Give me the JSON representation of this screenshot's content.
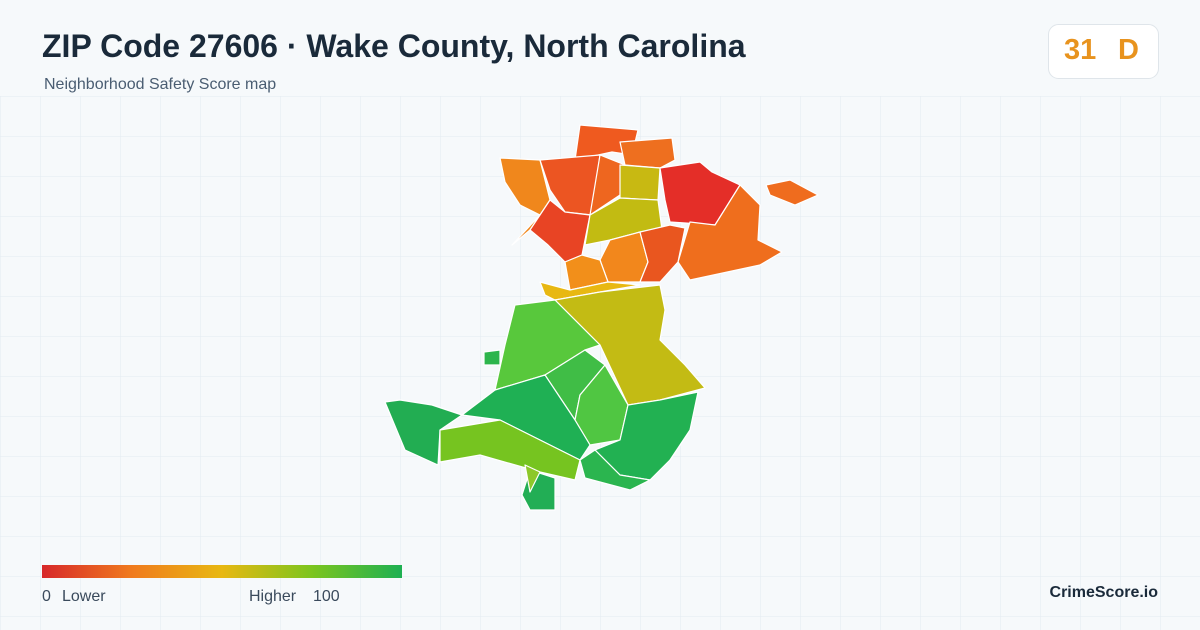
{
  "header": {
    "title": "ZIP Code 27606 · Wake County, North Carolina",
    "subtitle": "Neighborhood Safety Score map"
  },
  "score": {
    "value": "31",
    "grade": "D"
  },
  "legend": {
    "min": "0",
    "min_label": "Lower",
    "max_label": "Higher",
    "max": "100"
  },
  "brand": "CrimeScore.io"
}
